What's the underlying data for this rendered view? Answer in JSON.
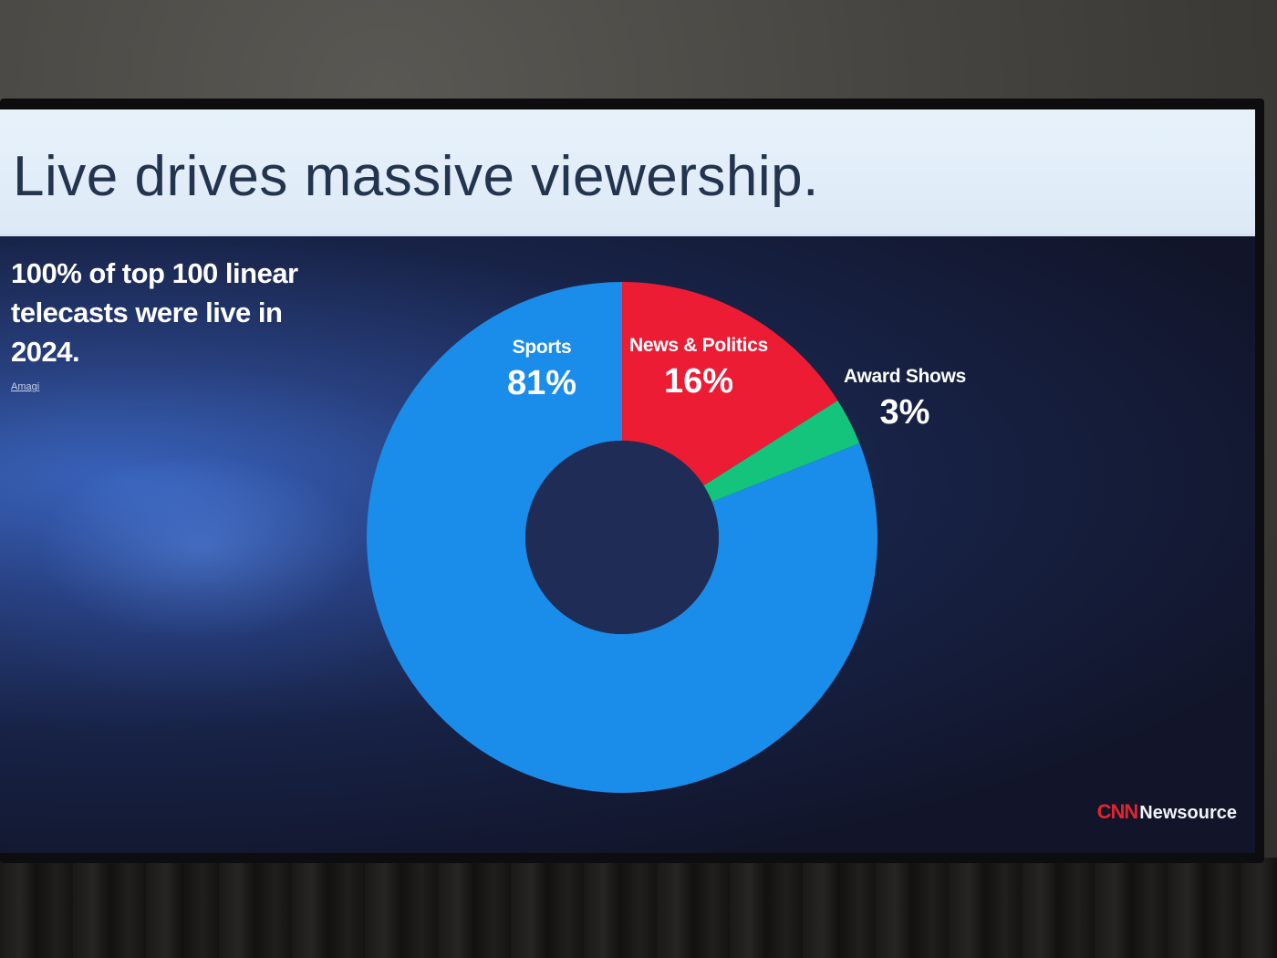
{
  "slide": {
    "title": "Live drives massive viewership.",
    "side_text": "100% of top 100 linear telecasts were live in 2024.",
    "source_note": "Amagi",
    "logo": {
      "brand": "CNN",
      "product": "Newsource"
    }
  },
  "chart_data": {
    "type": "pie",
    "style": "donut",
    "title": "",
    "slices": [
      {
        "name": "Sports",
        "label": "81%",
        "value": 81,
        "color": "#1a8cea"
      },
      {
        "name": "News & Politics",
        "label": "16%",
        "value": 16,
        "color": "#ec1c34"
      },
      {
        "name": "Award Shows",
        "label": "3%",
        "value": 3,
        "color": "#14c47d"
      }
    ],
    "start": "12 o'clock",
    "direction": "clockwise (News & Politics, Award Shows, Sports)"
  }
}
